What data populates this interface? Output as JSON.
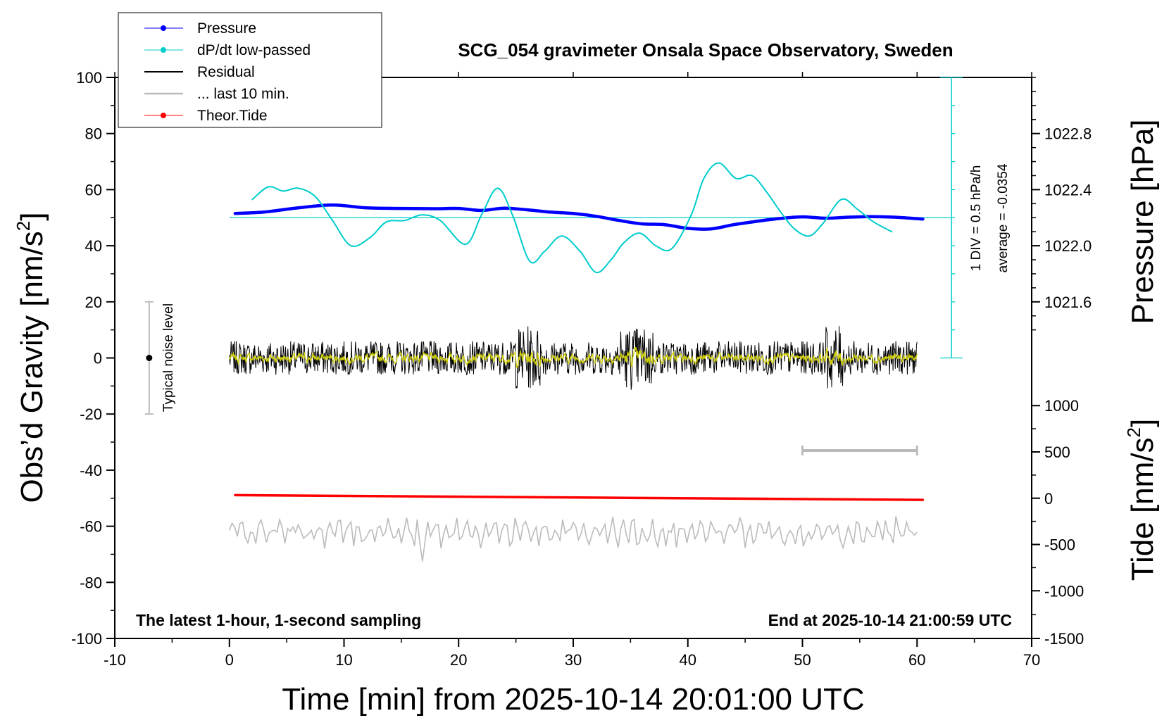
{
  "chart_data": {
    "type": "line",
    "title": "SCG_054 gravimeter Onsala Space Observatory, Sweden",
    "xlabel": "Time [min] from 2025-10-14 20:01:00 UTC",
    "ylabel_main": "Obs’d Gravity [nm/s",
    "ylabel_pressure": "Pressure [hPa]",
    "ylabel_tide": "Tide [nm/s",
    "superscript": "2",
    "superscript_close": "]",
    "xlim": [
      -10,
      70
    ],
    "ylim": [
      -100,
      100
    ],
    "x_ticks": [
      "-10",
      "0",
      "10",
      "20",
      "30",
      "40",
      "50",
      "60",
      "70"
    ],
    "y_ticks": [
      "100",
      "80",
      "60",
      "40",
      "20",
      "0",
      "-20",
      "-40",
      "-60",
      "-80",
      "-100"
    ],
    "pressure_ticks": [
      {
        "label": "1022.8",
        "y": 80
      },
      {
        "label": "1022.4",
        "y": 60
      },
      {
        "label": "1022.0",
        "y": 40
      },
      {
        "label": "1021.6",
        "y": 20
      }
    ],
    "tide_ticks": [
      {
        "label": "1000",
        "y": -17
      },
      {
        "label": "500",
        "y": -33.5
      },
      {
        "label": "0",
        "y": -50
      },
      {
        "label": "-500",
        "y": -66.5
      },
      {
        "label": "-1000",
        "y": -83
      },
      {
        "label": "-1500",
        "y": -100
      }
    ],
    "legend": [
      {
        "label": "Pressure",
        "color": "#0000ff",
        "marker": true
      },
      {
        "label": "dP/dt low-passed",
        "color": "#00cccc",
        "marker": true
      },
      {
        "label": "Residual",
        "color": "#000000",
        "marker": false
      },
      {
        "label": "... last 10 min.",
        "color": "#bbbbbb",
        "marker": false
      },
      {
        "label": "Theor.Tide",
        "color": "#ff0000",
        "marker": true
      }
    ],
    "series": [
      {
        "name": "Pressure",
        "color": "#0000ff",
        "x": [
          0.5,
          3,
          6,
          9,
          12,
          15,
          18,
          20,
          22,
          24,
          26,
          28,
          30,
          32,
          34,
          36,
          38,
          40,
          42,
          44,
          46,
          48,
          50,
          52,
          54,
          56,
          58,
          60.5
        ],
        "y": [
          51.5,
          52,
          53.5,
          54.5,
          53.5,
          53.3,
          53.2,
          53.3,
          52.6,
          53.4,
          52.8,
          52,
          51.5,
          50.5,
          49,
          47.8,
          47.5,
          46.2,
          46,
          47.5,
          48.7,
          49.7,
          50.3,
          49.8,
          50.2,
          50.4,
          50.2,
          49.5
        ]
      },
      {
        "name": "dP/dt low-passed",
        "color": "#00cccc",
        "x": [
          2,
          3.4,
          4.7,
          6,
          7.5,
          9,
          10.6,
          12.3,
          13.7,
          15.3,
          16.8,
          18.4,
          20.6,
          22,
          23.4,
          24.7,
          26.2,
          27.5,
          29,
          30.6,
          32,
          33.3,
          34.4,
          35.8,
          37.2,
          38.6,
          40.3,
          41.4,
          42.7,
          44.2,
          45.6,
          46.9,
          48.1,
          49.3,
          50.6,
          51.8,
          53.4,
          54.8,
          56.2,
          57.8
        ],
        "y": [
          56.5,
          61,
          59.5,
          60.5,
          57.5,
          49,
          40,
          43,
          48.5,
          49,
          51,
          49,
          40.5,
          51,
          60.5,
          51,
          34.5,
          38,
          43.5,
          38,
          30.5,
          35,
          41,
          44.5,
          40,
          39,
          51,
          64,
          69.5,
          64,
          65,
          59,
          52,
          46,
          43.5,
          48,
          56.5,
          53,
          48.5,
          45
        ]
      },
      {
        "name": "Theor.Tide",
        "color": "#ff0000",
        "x": [
          0.5,
          60.5
        ],
        "y": [
          -48.9,
          -50.6
        ]
      }
    ],
    "pressure_reference_y": 50,
    "residual": {
      "name": "Residual",
      "x_start": 0,
      "x_end": 60,
      "y_center": 0,
      "amplitude": 6
    },
    "last_10_min": {
      "x_start": 50,
      "x_end": 60,
      "y": -33
    },
    "noise_level": {
      "x": -7,
      "y_low": -20,
      "y_high": 20,
      "label": "Typical noise level"
    },
    "dpdt_scale": {
      "x": 63,
      "y_low": 0,
      "y_high": 100,
      "label_div": "1 DIV = 0.5 hPa/h",
      "label_avg": "average = -0.0354"
    },
    "note_left": "The latest 1-hour, 1-second sampling",
    "note_right": "End at 2025-10-14 21:00:59 UTC"
  }
}
